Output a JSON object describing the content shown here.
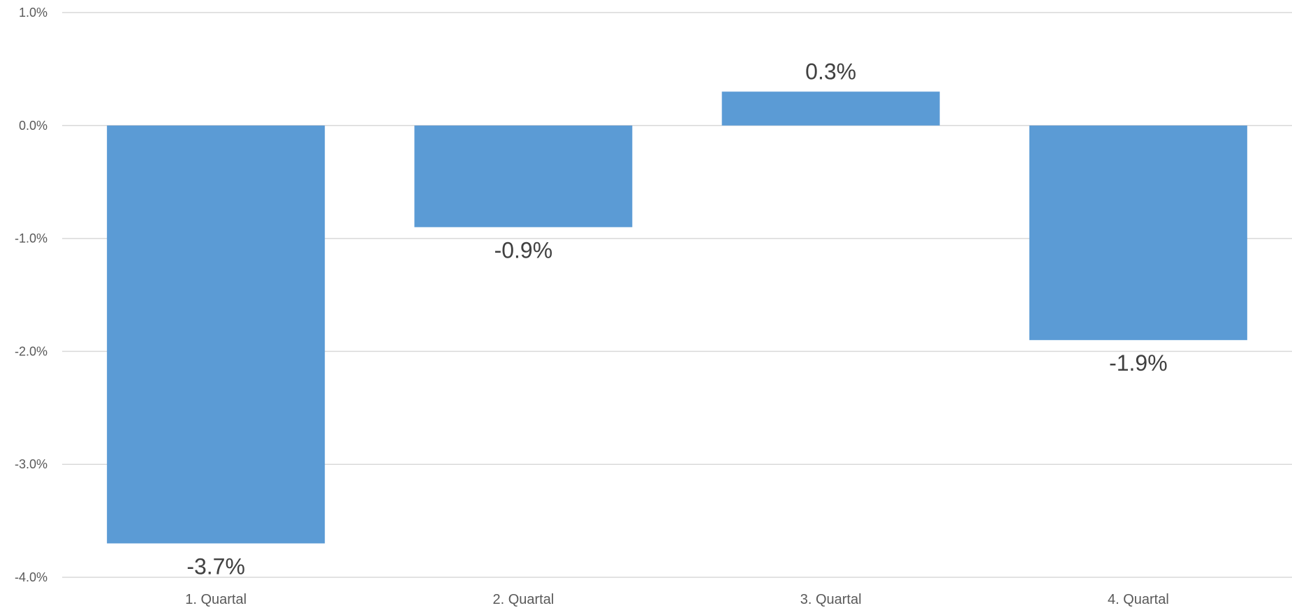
{
  "chart_data": {
    "type": "bar",
    "title": "",
    "xlabel": "",
    "ylabel": "",
    "categories": [
      "1. Quartal",
      "2. Quartal",
      "3. Quartal",
      "4. Quartal"
    ],
    "values": [
      -3.7,
      -0.9,
      0.3,
      -1.9
    ],
    "data_labels": [
      "-3.7%",
      "-0.9%",
      "0.3%",
      "-1.9%"
    ],
    "ylim": [
      -4.0,
      1.0
    ],
    "yticks": [
      1.0,
      0.0,
      -1.0,
      -2.0,
      -3.0,
      -4.0
    ],
    "ytick_labels": [
      "1.0%",
      "0.0%",
      "-1.0%",
      "-2.0%",
      "-3.0%",
      "-4.0%"
    ],
    "grid": true,
    "legend": "none",
    "colors": {
      "bar": "#5b9bd5",
      "grid": "#d9d9d9",
      "tick_text": "#595959",
      "label_text": "#404040"
    }
  }
}
